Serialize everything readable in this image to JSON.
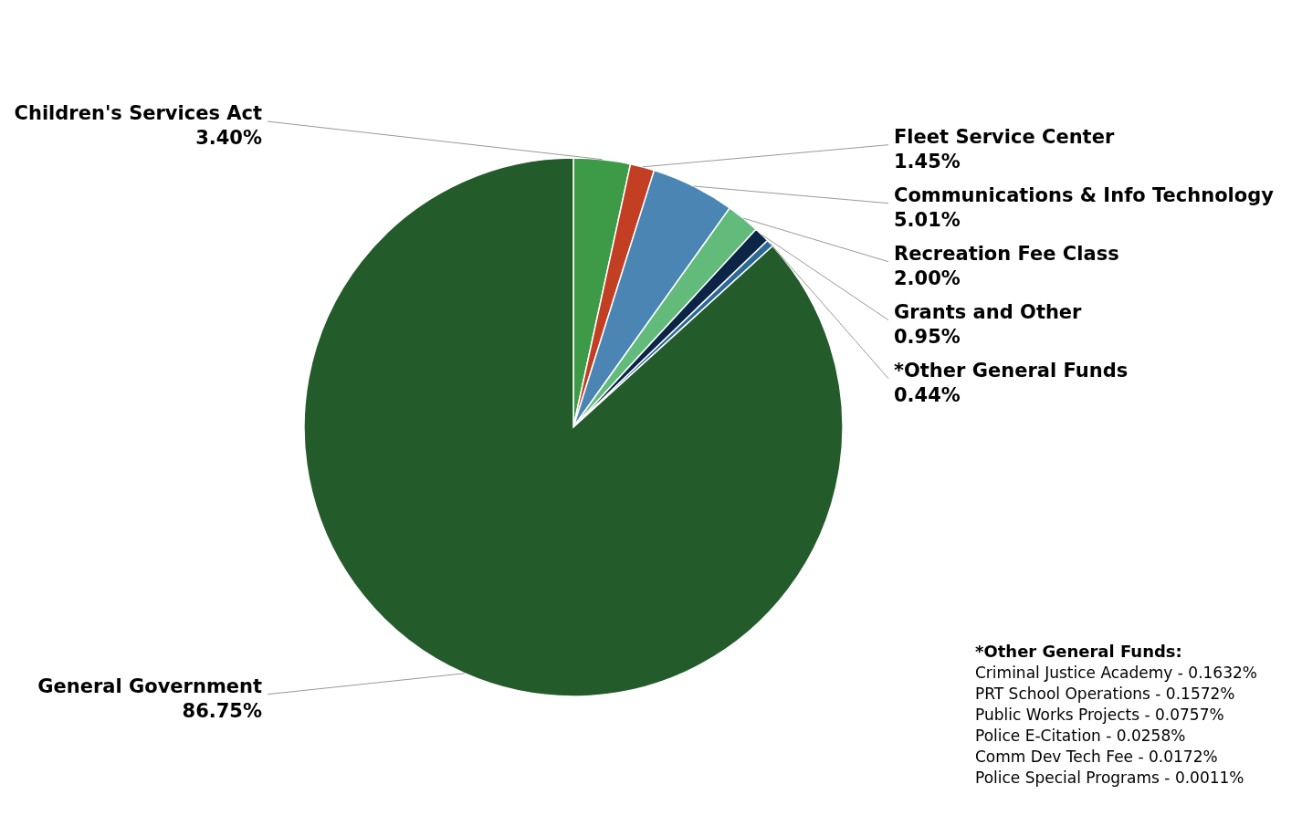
{
  "chart_data": {
    "type": "pie",
    "categories": [
      "Children's Services Act",
      "Fleet Service Center",
      "Communications & Info Technology",
      "Recreation Fee Class",
      "Grants and Other",
      "*Other General Funds",
      "General Government"
    ],
    "values": [
      3.4,
      1.45,
      5.01,
      2.0,
      0.95,
      0.44,
      86.75
    ],
    "value_labels": [
      "3.40%",
      "1.45%",
      "5.01%",
      "2.00%",
      "0.95%",
      "0.44%",
      "86.75%"
    ],
    "colors": [
      "#3d9b47",
      "#c23f24",
      "#4a85b4",
      "#62bb7b",
      "#0c2546",
      "#2c6a93",
      "#235b2b"
    ],
    "annotations": [
      "*Other General Funds:",
      "Criminal Justice Academy - 0.1632%",
      "PRT School Operations - 0.1572%",
      "Public Works Projects - 0.0757%",
      "Police E-Citation - 0.0258%",
      "Comm Dev Tech Fee - 0.0172%",
      "Police Special Programs - 0.0011%"
    ]
  }
}
